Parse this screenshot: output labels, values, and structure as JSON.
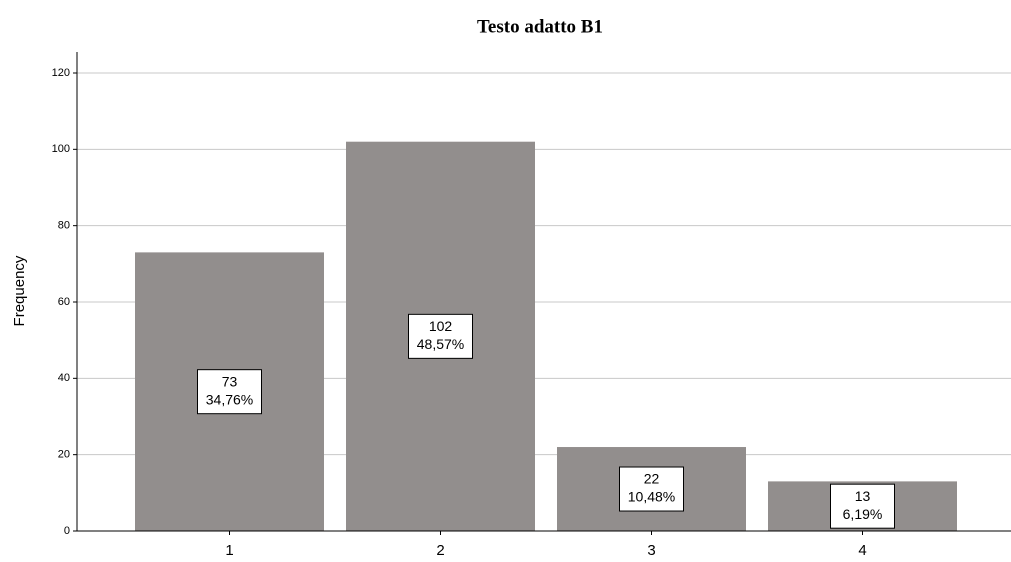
{
  "chart_data": {
    "type": "bar",
    "title": "Testo adatto B1",
    "y_label": "Frequency",
    "categories": [
      "1",
      "2",
      "3",
      "4"
    ],
    "values": [
      73,
      102,
      22,
      13
    ],
    "percents": [
      34.76,
      48.57,
      10.48,
      6.19
    ],
    "percent_labels": [
      "34,76%",
      "48,57%",
      "10,48%",
      "6,19%"
    ],
    "color": "#928e8d",
    "ylim": [
      0,
      125.5
    ],
    "yticks": [
      0,
      20,
      40,
      60,
      80,
      100,
      120
    ],
    "grid": true
  }
}
